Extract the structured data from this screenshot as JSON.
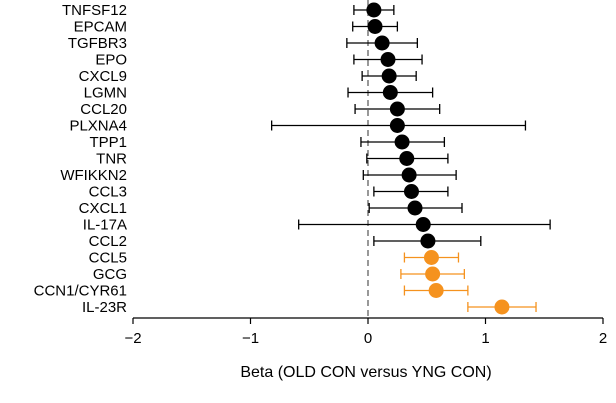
{
  "chart_data": {
    "type": "scatter",
    "subtype": "forest-plot",
    "xlabel": "Beta (OLD CON versus YNG CON)",
    "ylabel": "",
    "xlim": [
      -2,
      2
    ],
    "xticks": [
      -2,
      -1,
      0,
      1,
      2
    ],
    "xtick_labels": [
      "−2",
      "−1",
      "0",
      "1",
      "2"
    ],
    "reference_line": 0,
    "grid": false,
    "colors": {
      "default": "#000000",
      "highlight": "#f5921e"
    },
    "categories": [
      "TNFSF12",
      "EPCAM",
      "TGFBR3",
      "EPO",
      "CXCL9",
      "LGMN",
      "CCL20",
      "PLXNA4",
      "TPP1",
      "TNR",
      "WFIKKN2",
      "CCL3",
      "CXCL1",
      "IL-17A",
      "CCL2",
      "CCL5",
      "GCG",
      "CCN1/CYR61",
      "IL-23R"
    ],
    "series": [
      {
        "points": [
          {
            "label": "TNFSF12",
            "beta": 0.05,
            "ci_low": -0.12,
            "ci_high": 0.22,
            "highlight": false
          },
          {
            "label": "EPCAM",
            "beta": 0.06,
            "ci_low": -0.13,
            "ci_high": 0.25,
            "highlight": false
          },
          {
            "label": "TGFBR3",
            "beta": 0.12,
            "ci_low": -0.18,
            "ci_high": 0.42,
            "highlight": false
          },
          {
            "label": "EPO",
            "beta": 0.17,
            "ci_low": -0.12,
            "ci_high": 0.46,
            "highlight": false
          },
          {
            "label": "CXCL9",
            "beta": 0.18,
            "ci_low": -0.05,
            "ci_high": 0.41,
            "highlight": false
          },
          {
            "label": "LGMN",
            "beta": 0.19,
            "ci_low": -0.17,
            "ci_high": 0.55,
            "highlight": false
          },
          {
            "label": "CCL20",
            "beta": 0.25,
            "ci_low": -0.11,
            "ci_high": 0.61,
            "highlight": false
          },
          {
            "label": "PLXNA4",
            "beta": 0.25,
            "ci_low": -0.82,
            "ci_high": 1.34,
            "highlight": false
          },
          {
            "label": "TPP1",
            "beta": 0.29,
            "ci_low": -0.06,
            "ci_high": 0.65,
            "highlight": false
          },
          {
            "label": "TNR",
            "beta": 0.33,
            "ci_low": -0.01,
            "ci_high": 0.68,
            "highlight": false
          },
          {
            "label": "WFIKKN2",
            "beta": 0.35,
            "ci_low": -0.04,
            "ci_high": 0.75,
            "highlight": false
          },
          {
            "label": "CCL3",
            "beta": 0.37,
            "ci_low": 0.05,
            "ci_high": 0.68,
            "highlight": false
          },
          {
            "label": "CXCL1",
            "beta": 0.4,
            "ci_low": 0.01,
            "ci_high": 0.8,
            "highlight": false
          },
          {
            "label": "IL-17A",
            "beta": 0.47,
            "ci_low": -0.59,
            "ci_high": 1.55,
            "highlight": false
          },
          {
            "label": "CCL2",
            "beta": 0.51,
            "ci_low": 0.05,
            "ci_high": 0.96,
            "highlight": false
          },
          {
            "label": "CCL5",
            "beta": 0.54,
            "ci_low": 0.31,
            "ci_high": 0.77,
            "highlight": true
          },
          {
            "label": "GCG",
            "beta": 0.55,
            "ci_low": 0.28,
            "ci_high": 0.82,
            "highlight": true
          },
          {
            "label": "CCN1/CYR61",
            "beta": 0.58,
            "ci_low": 0.31,
            "ci_high": 0.85,
            "highlight": true
          },
          {
            "label": "IL-23R",
            "beta": 1.14,
            "ci_low": 0.85,
            "ci_high": 1.43,
            "highlight": true
          }
        ]
      }
    ]
  }
}
